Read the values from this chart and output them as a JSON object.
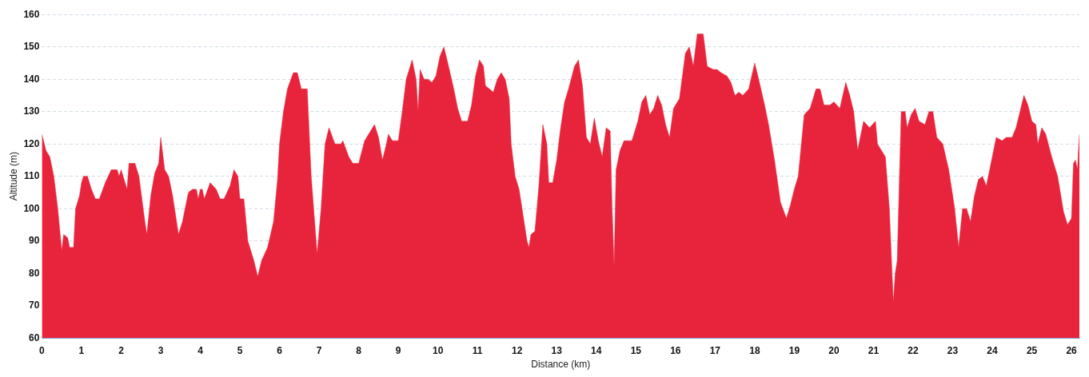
{
  "chart_data": {
    "type": "area",
    "xlabel": "Distance (km)",
    "ylabel": "Altitude (m)",
    "color": "#e8243c",
    "grid": "y",
    "xlim": [
      0,
      26.2
    ],
    "xticks": [
      0,
      1,
      2,
      3,
      4,
      5,
      6,
      7,
      8,
      9,
      10,
      11,
      12,
      13,
      14,
      15,
      16,
      17,
      18,
      19,
      20,
      21,
      22,
      23,
      24,
      25,
      26
    ],
    "ylim": [
      60,
      160
    ],
    "yticks": [
      60,
      70,
      80,
      90,
      100,
      110,
      120,
      130,
      140,
      150,
      160
    ],
    "x": [
      0,
      0.1,
      0.2,
      0.3,
      0.4,
      0.5,
      0.55,
      0.65,
      0.7,
      0.8,
      0.85,
      0.95,
      1.0,
      1.05,
      1.15,
      1.25,
      1.35,
      1.45,
      1.6,
      1.75,
      1.9,
      1.95,
      2.0,
      2.1,
      2.15,
      2.2,
      2.35,
      2.45,
      2.6,
      2.65,
      2.75,
      2.85,
      2.95,
      3.0,
      3.1,
      3.2,
      3.3,
      3.4,
      3.45,
      3.55,
      3.65,
      3.7,
      3.8,
      3.9,
      3.95,
      4.0,
      4.05,
      4.1,
      4.25,
      4.4,
      4.5,
      4.6,
      4.75,
      4.85,
      4.95,
      5.0,
      5.1,
      5.2,
      5.35,
      5.45,
      5.55,
      5.7,
      5.85,
      5.95,
      6.0,
      6.1,
      6.2,
      6.35,
      6.45,
      6.55,
      6.7,
      6.8,
      6.95,
      7.05,
      7.15,
      7.25,
      7.4,
      7.55,
      7.6,
      7.75,
      7.85,
      8.0,
      8.15,
      8.3,
      8.4,
      8.5,
      8.6,
      8.7,
      8.75,
      8.85,
      9.0,
      9.1,
      9.2,
      9.35,
      9.45,
      9.5,
      9.55,
      9.65,
      9.75,
      9.85,
      9.95,
      10.05,
      10.15,
      10.25,
      10.4,
      10.5,
      10.6,
      10.75,
      10.85,
      10.95,
      11.05,
      11.15,
      11.2,
      11.4,
      11.5,
      11.6,
      11.7,
      11.8,
      11.85,
      11.95,
      12.05,
      12.15,
      12.25,
      12.3,
      12.35,
      12.45,
      12.55,
      12.65,
      12.75,
      12.8,
      12.9,
      13.0,
      13.1,
      13.2,
      13.3,
      13.45,
      13.55,
      13.65,
      13.75,
      13.85,
      13.95,
      14.05,
      14.15,
      14.25,
      14.35,
      14.4,
      14.45,
      14.5,
      14.6,
      14.7,
      14.9,
      15.05,
      15.15,
      15.25,
      15.35,
      15.45,
      15.55,
      15.65,
      15.75,
      15.85,
      15.95,
      16.05,
      16.1,
      16.25,
      16.35,
      16.45,
      16.55,
      16.7,
      16.8,
      16.95,
      17.05,
      17.15,
      17.3,
      17.4,
      17.5,
      17.6,
      17.7,
      17.85,
      18.0,
      18.1,
      18.25,
      18.35,
      18.5,
      18.65,
      18.8,
      18.9,
      19.0,
      19.1,
      19.25,
      19.4,
      19.55,
      19.65,
      19.75,
      19.9,
      20.0,
      20.15,
      20.3,
      20.4,
      20.5,
      20.6,
      20.75,
      20.9,
      21.05,
      21.1,
      21.3,
      21.4,
      21.5,
      21.55,
      21.6,
      21.7,
      21.8,
      21.85,
      21.95,
      22.05,
      22.15,
      22.3,
      22.4,
      22.5,
      22.6,
      22.75,
      22.9,
      23.05,
      23.15,
      23.25,
      23.35,
      23.45,
      23.55,
      23.65,
      23.75,
      23.85,
      24.0,
      24.1,
      24.25,
      24.35,
      24.5,
      24.6,
      24.7,
      24.8,
      24.9,
      25.0,
      25.1,
      25.15,
      25.25,
      25.35,
      25.5,
      25.65,
      25.8,
      25.9,
      26.0,
      26.05,
      26.1,
      26.15,
      26.2
    ],
    "values": [
      123,
      118,
      116,
      110,
      100,
      87,
      92,
      91,
      88,
      88,
      100,
      104,
      108,
      110,
      110,
      106,
      103,
      103,
      108,
      112,
      112,
      110,
      112,
      108,
      106,
      114,
      114,
      110,
      96,
      92,
      104,
      111,
      114,
      122,
      112,
      110,
      104,
      96,
      92,
      96,
      102,
      105,
      106,
      106,
      103,
      106,
      106,
      103,
      108,
      106,
      103,
      103,
      107,
      112,
      110,
      103,
      103,
      90,
      84,
      79,
      84,
      88,
      96,
      109,
      120,
      130,
      137,
      142,
      142,
      137,
      137,
      110,
      86,
      100,
      120,
      125,
      120,
      120,
      121,
      116,
      114,
      114,
      121,
      124,
      126,
      122,
      115,
      120,
      123,
      121,
      121,
      130,
      140,
      146,
      140,
      130,
      143,
      140,
      140,
      139,
      141,
      147,
      150,
      145,
      137,
      131,
      127,
      127,
      132,
      141,
      146,
      144,
      138,
      136,
      140,
      142,
      140,
      134,
      120,
      110,
      106,
      98,
      90,
      88,
      92,
      93,
      107,
      126,
      120,
      108,
      108,
      115,
      125,
      133,
      137,
      144,
      146,
      138,
      122,
      120,
      128,
      121,
      116,
      125,
      124,
      100,
      82,
      112,
      118,
      121,
      121,
      127,
      133,
      135,
      129,
      131,
      135,
      132,
      126,
      122,
      131,
      133,
      134,
      148,
      150,
      144,
      154,
      154,
      144,
      143,
      143,
      142,
      141,
      139,
      135,
      136,
      135,
      137,
      145,
      140,
      132,
      126,
      115,
      102,
      97,
      101,
      106,
      110,
      129,
      131,
      137,
      137,
      132,
      132,
      133,
      131,
      139,
      135,
      130,
      118,
      127,
      125,
      127,
      120,
      116,
      100,
      71,
      80,
      84,
      130,
      130,
      125,
      129,
      131,
      127,
      126,
      130,
      130,
      122,
      120,
      112,
      100,
      88,
      100,
      100,
      96,
      104,
      109,
      110,
      107,
      116,
      122,
      121,
      122,
      122,
      125,
      130,
      135,
      132,
      127,
      126,
      120,
      125,
      123,
      116,
      110,
      99,
      95,
      97,
      114,
      115,
      112,
      123
    ]
  }
}
